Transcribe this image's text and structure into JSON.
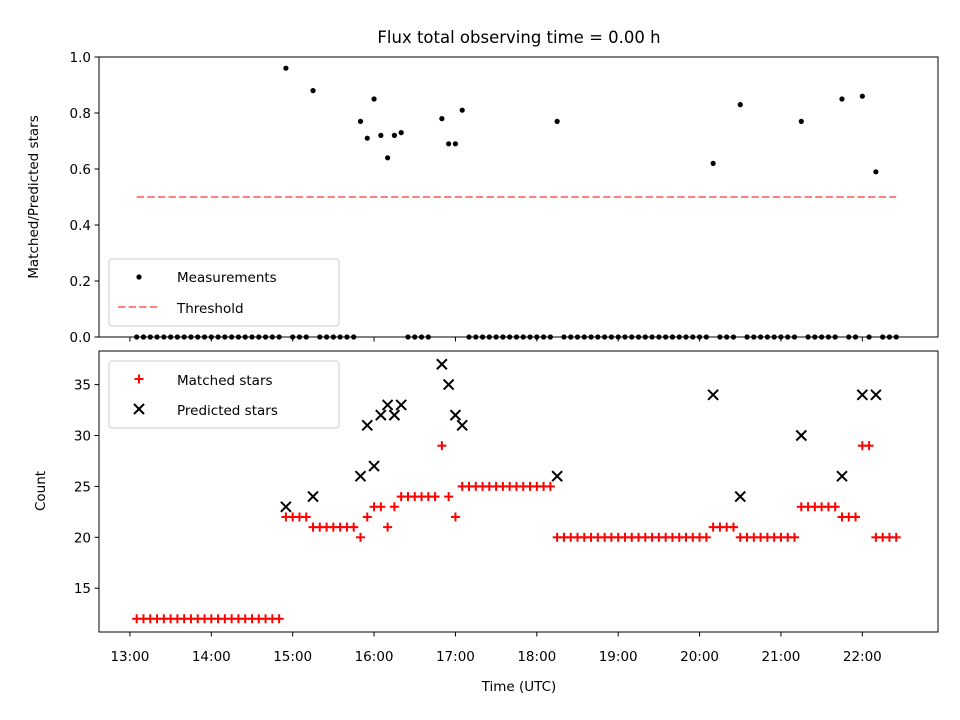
{
  "chart_data": [
    {
      "type": "scatter",
      "title": "Flux total observing time = 0.00 h",
      "xlabel": "",
      "ylabel": "Matched/Predicted stars",
      "ylim": [
        0,
        1.0
      ],
      "yticks": [
        0.0,
        0.2,
        0.4,
        0.6,
        0.8,
        1.0
      ],
      "yticklabels": [
        "0.0",
        "0.2",
        "0.4",
        "0.6",
        "0.8",
        "1.0"
      ],
      "xlim_hours": [
        12.62,
        22.93
      ],
      "grid": false,
      "legend": {
        "position": "lower-left",
        "entries": [
          "Measurements",
          "Threshold"
        ]
      },
      "threshold": {
        "value": 0.5,
        "x_start": "13:05",
        "x_end": "22:25",
        "color": "#ff8080",
        "style": "dashed"
      },
      "series": [
        {
          "name": "Measurements",
          "color": "#000000",
          "marker": "dot",
          "points": [
            [
              "13:05",
              0
            ],
            [
              "13:10",
              0
            ],
            [
              "13:15",
              0
            ],
            [
              "13:20",
              0
            ],
            [
              "13:25",
              0
            ],
            [
              "13:30",
              0
            ],
            [
              "13:35",
              0
            ],
            [
              "13:40",
              0
            ],
            [
              "13:45",
              0
            ],
            [
              "13:50",
              0
            ],
            [
              "13:55",
              0
            ],
            [
              "14:00",
              0
            ],
            [
              "14:05",
              0
            ],
            [
              "14:10",
              0
            ],
            [
              "14:15",
              0
            ],
            [
              "14:20",
              0
            ],
            [
              "14:25",
              0
            ],
            [
              "14:30",
              0
            ],
            [
              "14:35",
              0
            ],
            [
              "14:40",
              0
            ],
            [
              "14:45",
              0
            ],
            [
              "14:50",
              0
            ],
            [
              "14:55",
              0.96
            ],
            [
              "15:00",
              0
            ],
            [
              "15:05",
              0
            ],
            [
              "15:10",
              0
            ],
            [
              "15:15",
              0.88
            ],
            [
              "15:20",
              0
            ],
            [
              "15:25",
              0
            ],
            [
              "15:30",
              0
            ],
            [
              "15:35",
              0
            ],
            [
              "15:40",
              0
            ],
            [
              "15:45",
              0
            ],
            [
              "15:50",
              0.77
            ],
            [
              "15:55",
              0.71
            ],
            [
              "16:00",
              0.85
            ],
            [
              "16:05",
              0.72
            ],
            [
              "16:10",
              0.64
            ],
            [
              "16:15",
              0.72
            ],
            [
              "16:20",
              0.73
            ],
            [
              "16:25",
              0
            ],
            [
              "16:30",
              0
            ],
            [
              "16:35",
              0
            ],
            [
              "16:40",
              0
            ],
            [
              "16:50",
              0.78
            ],
            [
              "16:55",
              0.69
            ],
            [
              "17:00",
              0.69
            ],
            [
              "17:05",
              0.81
            ],
            [
              "17:10",
              0
            ],
            [
              "17:15",
              0
            ],
            [
              "17:20",
              0
            ],
            [
              "17:25",
              0
            ],
            [
              "17:30",
              0
            ],
            [
              "17:35",
              0
            ],
            [
              "17:40",
              0
            ],
            [
              "17:45",
              0
            ],
            [
              "17:50",
              0
            ],
            [
              "17:55",
              0
            ],
            [
              "18:00",
              0
            ],
            [
              "18:05",
              0
            ],
            [
              "18:10",
              0
            ],
            [
              "18:15",
              0.77
            ],
            [
              "18:20",
              0
            ],
            [
              "18:25",
              0
            ],
            [
              "18:30",
              0
            ],
            [
              "18:35",
              0
            ],
            [
              "18:40",
              0
            ],
            [
              "18:45",
              0
            ],
            [
              "18:50",
              0
            ],
            [
              "18:55",
              0
            ],
            [
              "19:00",
              0
            ],
            [
              "19:05",
              0
            ],
            [
              "19:10",
              0
            ],
            [
              "19:15",
              0
            ],
            [
              "19:20",
              0
            ],
            [
              "19:25",
              0
            ],
            [
              "19:30",
              0
            ],
            [
              "19:35",
              0
            ],
            [
              "19:40",
              0
            ],
            [
              "19:45",
              0
            ],
            [
              "19:50",
              0
            ],
            [
              "19:55",
              0
            ],
            [
              "20:00",
              0
            ],
            [
              "20:05",
              0
            ],
            [
              "20:10",
              0.62
            ],
            [
              "20:15",
              0
            ],
            [
              "20:20",
              0
            ],
            [
              "20:25",
              0
            ],
            [
              "20:30",
              0.83
            ],
            [
              "20:35",
              0
            ],
            [
              "20:40",
              0
            ],
            [
              "20:45",
              0
            ],
            [
              "20:50",
              0
            ],
            [
              "20:55",
              0
            ],
            [
              "21:00",
              0
            ],
            [
              "21:05",
              0
            ],
            [
              "21:10",
              0
            ],
            [
              "21:15",
              0.77
            ],
            [
              "21:20",
              0
            ],
            [
              "21:25",
              0
            ],
            [
              "21:30",
              0
            ],
            [
              "21:35",
              0
            ],
            [
              "21:40",
              0
            ],
            [
              "21:45",
              0.85
            ],
            [
              "21:50",
              0
            ],
            [
              "21:55",
              0
            ],
            [
              "22:00",
              0.86
            ],
            [
              "22:05",
              0
            ],
            [
              "22:10",
              0.59
            ],
            [
              "22:15",
              0
            ],
            [
              "22:20",
              0
            ],
            [
              "22:25",
              0
            ]
          ]
        }
      ]
    },
    {
      "type": "scatter",
      "title": "",
      "xlabel": "Time (UTC)",
      "ylabel": "Count",
      "ylim": [
        10.7,
        38.3
      ],
      "yticks": [
        15,
        20,
        25,
        30,
        35
      ],
      "yticklabels": [
        "15",
        "20",
        "25",
        "30",
        "35"
      ],
      "xticks": [
        "13:00",
        "14:00",
        "15:00",
        "16:00",
        "17:00",
        "18:00",
        "19:00",
        "20:00",
        "21:00",
        "22:00"
      ],
      "xlim_hours": [
        12.62,
        22.93
      ],
      "grid": false,
      "legend": {
        "position": "upper-left",
        "entries": [
          "Matched stars",
          "Predicted stars"
        ]
      },
      "series": [
        {
          "name": "Matched stars",
          "color": "#ff0000",
          "marker": "plus",
          "points": [
            [
              "13:05",
              12
            ],
            [
              "13:10",
              12
            ],
            [
              "13:15",
              12
            ],
            [
              "13:20",
              12
            ],
            [
              "13:25",
              12
            ],
            [
              "13:30",
              12
            ],
            [
              "13:35",
              12
            ],
            [
              "13:40",
              12
            ],
            [
              "13:45",
              12
            ],
            [
              "13:50",
              12
            ],
            [
              "13:55",
              12
            ],
            [
              "14:00",
              12
            ],
            [
              "14:05",
              12
            ],
            [
              "14:10",
              12
            ],
            [
              "14:15",
              12
            ],
            [
              "14:20",
              12
            ],
            [
              "14:25",
              12
            ],
            [
              "14:30",
              12
            ],
            [
              "14:35",
              12
            ],
            [
              "14:40",
              12
            ],
            [
              "14:45",
              12
            ],
            [
              "14:50",
              12
            ],
            [
              "14:55",
              22
            ],
            [
              "15:00",
              22
            ],
            [
              "15:05",
              22
            ],
            [
              "15:10",
              22
            ],
            [
              "15:15",
              21
            ],
            [
              "15:20",
              21
            ],
            [
              "15:25",
              21
            ],
            [
              "15:30",
              21
            ],
            [
              "15:35",
              21
            ],
            [
              "15:40",
              21
            ],
            [
              "15:45",
              21
            ],
            [
              "15:50",
              20
            ],
            [
              "15:55",
              22
            ],
            [
              "16:00",
              23
            ],
            [
              "16:05",
              23
            ],
            [
              "16:10",
              21
            ],
            [
              "16:15",
              23
            ],
            [
              "16:20",
              24
            ],
            [
              "16:25",
              24
            ],
            [
              "16:30",
              24
            ],
            [
              "16:35",
              24
            ],
            [
              "16:40",
              24
            ],
            [
              "16:45",
              24
            ],
            [
              "16:50",
              29
            ],
            [
              "16:55",
              24
            ],
            [
              "17:00",
              22
            ],
            [
              "17:05",
              25
            ],
            [
              "17:10",
              25
            ],
            [
              "17:15",
              25
            ],
            [
              "17:20",
              25
            ],
            [
              "17:25",
              25
            ],
            [
              "17:30",
              25
            ],
            [
              "17:35",
              25
            ],
            [
              "17:40",
              25
            ],
            [
              "17:45",
              25
            ],
            [
              "17:50",
              25
            ],
            [
              "17:55",
              25
            ],
            [
              "18:00",
              25
            ],
            [
              "18:05",
              25
            ],
            [
              "18:10",
              25
            ],
            [
              "18:15",
              20
            ],
            [
              "18:20",
              20
            ],
            [
              "18:25",
              20
            ],
            [
              "18:30",
              20
            ],
            [
              "18:35",
              20
            ],
            [
              "18:40",
              20
            ],
            [
              "18:45",
              20
            ],
            [
              "18:50",
              20
            ],
            [
              "18:55",
              20
            ],
            [
              "19:00",
              20
            ],
            [
              "19:05",
              20
            ],
            [
              "19:10",
              20
            ],
            [
              "19:15",
              20
            ],
            [
              "19:20",
              20
            ],
            [
              "19:25",
              20
            ],
            [
              "19:30",
              20
            ],
            [
              "19:35",
              20
            ],
            [
              "19:40",
              20
            ],
            [
              "19:45",
              20
            ],
            [
              "19:50",
              20
            ],
            [
              "19:55",
              20
            ],
            [
              "20:00",
              20
            ],
            [
              "20:05",
              20
            ],
            [
              "20:10",
              21
            ],
            [
              "20:15",
              21
            ],
            [
              "20:20",
              21
            ],
            [
              "20:25",
              21
            ],
            [
              "20:30",
              20
            ],
            [
              "20:35",
              20
            ],
            [
              "20:40",
              20
            ],
            [
              "20:45",
              20
            ],
            [
              "20:50",
              20
            ],
            [
              "20:55",
              20
            ],
            [
              "21:00",
              20
            ],
            [
              "21:05",
              20
            ],
            [
              "21:10",
              20
            ],
            [
              "21:15",
              23
            ],
            [
              "21:20",
              23
            ],
            [
              "21:25",
              23
            ],
            [
              "21:30",
              23
            ],
            [
              "21:35",
              23
            ],
            [
              "21:40",
              23
            ],
            [
              "21:45",
              22
            ],
            [
              "21:50",
              22
            ],
            [
              "21:55",
              22
            ],
            [
              "22:00",
              29
            ],
            [
              "22:05",
              29
            ],
            [
              "22:10",
              20
            ],
            [
              "22:15",
              20
            ],
            [
              "22:20",
              20
            ],
            [
              "22:25",
              20
            ]
          ]
        },
        {
          "name": "Predicted stars",
          "color": "#000000",
          "marker": "x",
          "points": [
            [
              "14:55",
              23
            ],
            [
              "15:15",
              24
            ],
            [
              "15:50",
              26
            ],
            [
              "15:55",
              31
            ],
            [
              "16:00",
              27
            ],
            [
              "16:05",
              32
            ],
            [
              "16:10",
              33
            ],
            [
              "16:15",
              32
            ],
            [
              "16:20",
              33
            ],
            [
              "16:50",
              37
            ],
            [
              "16:55",
              35
            ],
            [
              "17:00",
              32
            ],
            [
              "17:05",
              31
            ],
            [
              "18:15",
              26
            ],
            [
              "20:10",
              34
            ],
            [
              "20:30",
              24
            ],
            [
              "21:15",
              30
            ],
            [
              "21:45",
              26
            ],
            [
              "22:00",
              34
            ],
            [
              "22:10",
              34
            ]
          ]
        }
      ]
    }
  ]
}
